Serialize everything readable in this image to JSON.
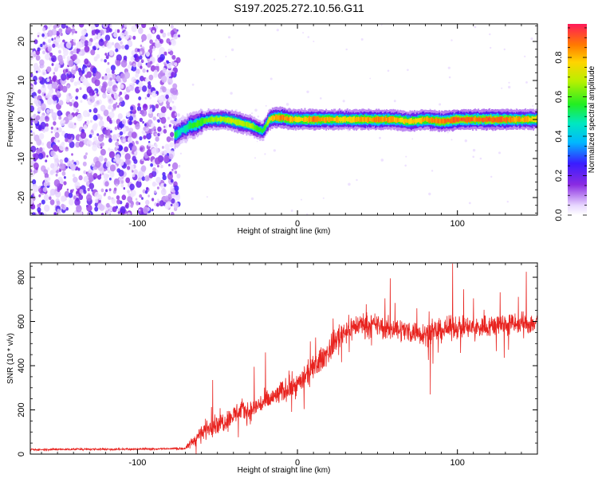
{
  "figure": {
    "title": "S197.2025.272.10.56.G11"
  },
  "chart_data": [
    {
      "type": "heatmap",
      "title": "S197.2025.272.10.56.G11",
      "xlabel": "Height of straight line (km)",
      "ylabel": "Frequency (Hz)",
      "xlim": [
        -167,
        150
      ],
      "ylim": [
        -24.5,
        24.5
      ],
      "xticks": [
        -100,
        0,
        100
      ],
      "yticks": [
        -20,
        -10,
        0,
        10,
        20
      ],
      "colorbar": {
        "label": "Normalized spectral amplitude",
        "range": [
          0,
          0.97
        ],
        "ticks": [
          0.0,
          0.2,
          0.4,
          0.6,
          0.8
        ]
      },
      "noise_region": {
        "x_from": -167,
        "x_to": -77,
        "description_value": "scattered low amplitude (~0.05-0.25) across all frequencies"
      },
      "ridge": {
        "x": [
          -77,
          -75,
          -72,
          -70,
          -68,
          -65,
          -60,
          -55,
          -50,
          -45,
          -40,
          -35,
          -30,
          -25,
          -22,
          -20,
          -18,
          -15,
          -10,
          -5,
          0,
          5,
          10,
          20,
          30,
          40,
          50,
          60,
          70,
          80,
          90,
          100,
          110,
          120,
          130,
          140,
          150
        ],
        "frequency_hz": [
          -4,
          -3.5,
          -2.5,
          -2.5,
          -1.5,
          -1.5,
          -0.5,
          0,
          0,
          0,
          -0.5,
          -1,
          -1.5,
          -2.5,
          -3,
          -1.5,
          0,
          0.5,
          0.5,
          0,
          0,
          0,
          0,
          0,
          0,
          0,
          0,
          0,
          -0.5,
          0,
          -0.5,
          0,
          0,
          0,
          0,
          0,
          0
        ],
        "amplitude": [
          0.55,
          0.5,
          0.45,
          0.5,
          0.55,
          0.6,
          0.6,
          0.65,
          0.7,
          0.7,
          0.75,
          0.7,
          0.7,
          0.6,
          0.55,
          0.65,
          0.75,
          0.85,
          0.9,
          0.85,
          0.8,
          0.85,
          0.9,
          0.85,
          0.8,
          0.85,
          0.9,
          0.85,
          0.8,
          0.85,
          0.9,
          0.95,
          0.9,
          0.95,
          0.9,
          0.85,
          0.8
        ]
      }
    },
    {
      "type": "line",
      "xlabel": "Height of straight line (km)",
      "ylabel": "SNR (10 * v/v)",
      "xlim": [
        -167,
        150
      ],
      "ylim": [
        0,
        865
      ],
      "xticks": [
        -100,
        0,
        100
      ],
      "yticks": [
        0,
        200,
        400,
        600,
        800
      ],
      "series": [
        {
          "name": "SNR",
          "color": "#e8231f",
          "x": [
            -167,
            -140,
            -110,
            -85,
            -70,
            -67,
            -60,
            -55,
            -50,
            -45,
            -40,
            -35,
            -30,
            -25,
            -20,
            -15,
            -10,
            -5,
            0,
            5,
            10,
            15,
            20,
            25,
            30,
            35,
            40,
            45,
            50,
            55,
            60,
            70,
            80,
            90,
            100,
            110,
            120,
            130,
            140,
            150
          ],
          "values": [
            20,
            22,
            22,
            24,
            25,
            45,
            95,
            125,
            140,
            150,
            175,
            200,
            190,
            220,
            235,
            255,
            280,
            300,
            315,
            350,
            385,
            430,
            470,
            530,
            560,
            575,
            590,
            580,
            585,
            565,
            570,
            555,
            545,
            560,
            575,
            570,
            580,
            590,
            585,
            595
          ],
          "noise_amplitude": [
            6,
            6,
            6,
            6,
            8,
            30,
            55,
            60,
            65,
            65,
            65,
            65,
            65,
            65,
            65,
            65,
            70,
            70,
            70,
            75,
            75,
            75,
            75,
            75,
            75,
            75,
            70,
            70,
            70,
            70,
            70,
            70,
            70,
            70,
            70,
            70,
            70,
            70,
            70,
            70
          ],
          "peaks": [
            {
              "x": -53,
              "y": 335
            },
            {
              "x": -27,
              "y": 395
            },
            {
              "x": -20,
              "y": 460
            },
            {
              "x": 8,
              "y": 510
            },
            {
              "x": 58,
              "y": 795
            },
            {
              "x": 83,
              "y": 270
            },
            {
              "x": 97,
              "y": 862
            },
            {
              "x": 143,
              "y": 825
            }
          ]
        }
      ]
    }
  ]
}
